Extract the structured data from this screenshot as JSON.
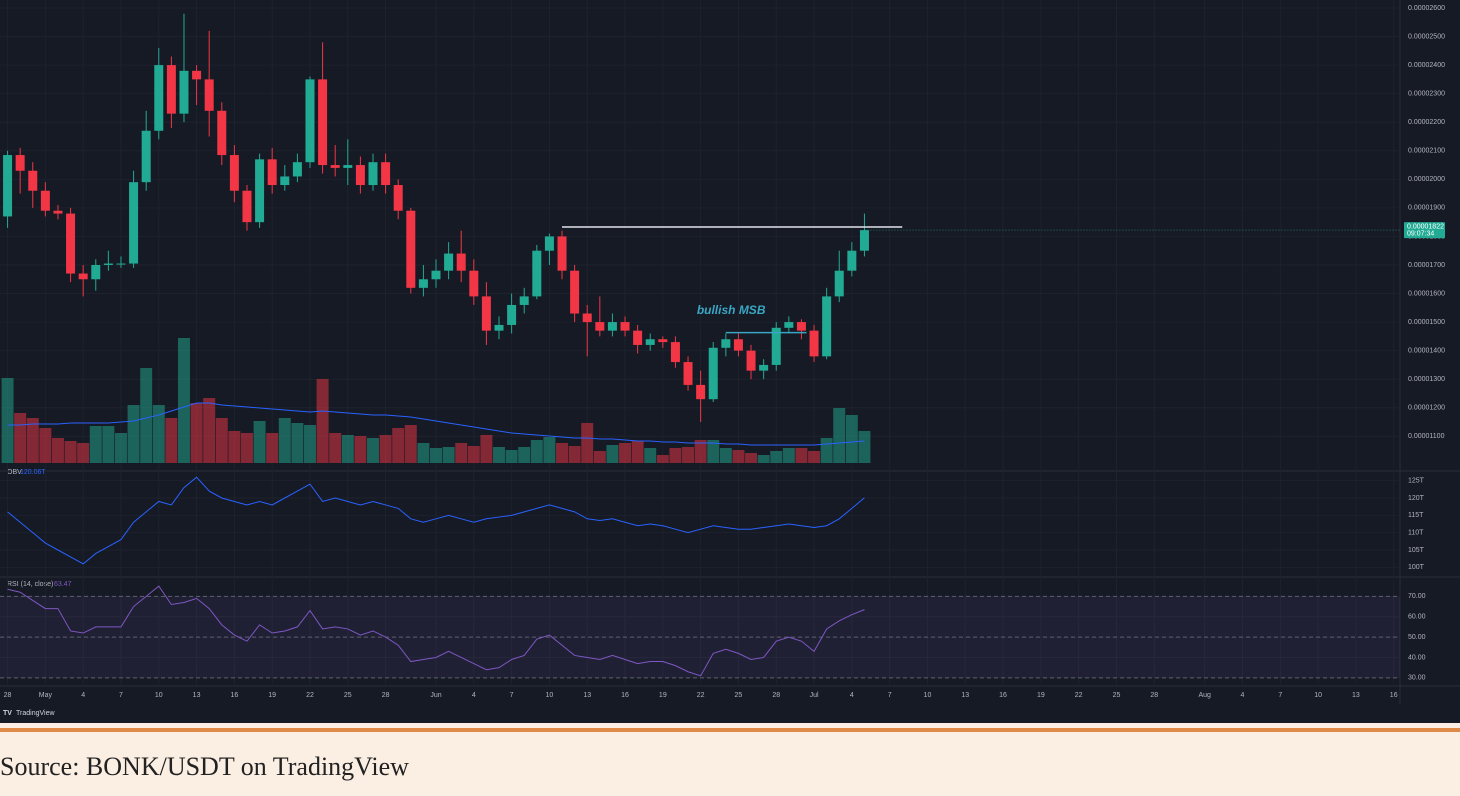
{
  "chart_data": {
    "type": "candlestick",
    "candles": {
      "open": [
        1.87e-05,
        2.085e-05,
        2.03e-05,
        1.96e-05,
        1.89e-05,
        1.88e-05,
        1.67e-05,
        1.65e-05,
        1.7e-05,
        1.705e-05,
        1.705e-05,
        1.99e-05,
        2.17e-05,
        2.4e-05,
        2.23e-05,
        2.38e-05,
        2.35e-05,
        2.24e-05,
        2.085e-05,
        1.96e-05,
        1.85e-05,
        2.07e-05,
        1.98e-05,
        2.01e-05,
        2.06e-05,
        2.35e-05,
        2.05e-05,
        2.04e-05,
        2.05e-05,
        1.98e-05,
        2.06e-05,
        1.98e-05,
        1.89e-05,
        1.62e-05,
        1.65e-05,
        1.68e-05,
        1.74e-05,
        1.68e-05,
        1.59e-05,
        1.47e-05,
        1.49e-05,
        1.56e-05,
        1.59e-05,
        1.75e-05,
        1.8e-05,
        1.68e-05,
        1.53e-05,
        1.5e-05,
        1.47e-05,
        1.5e-05,
        1.47e-05,
        1.42e-05,
        1.44e-05,
        1.43e-05,
        1.36e-05,
        1.28e-05,
        1.23e-05,
        1.41e-05,
        1.44e-05,
        1.4e-05,
        1.33e-05,
        1.35e-05,
        1.48e-05,
        1.5e-05,
        1.47e-05,
        1.38e-05,
        1.59e-05,
        1.68e-05,
        1.75e-05
      ],
      "high": [
        2.1e-05,
        2.11e-05,
        2.06e-05,
        1.99e-05,
        1.91e-05,
        1.9e-05,
        1.7e-05,
        1.72e-05,
        1.75e-05,
        1.73e-05,
        2.03e-05,
        2.24e-05,
        2.46e-05,
        2.43e-05,
        2.58e-05,
        2.4e-05,
        2.52e-05,
        2.27e-05,
        2.12e-05,
        1.98e-05,
        2.09e-05,
        2.11e-05,
        2.05e-05,
        2.09e-05,
        2.36e-05,
        2.48e-05,
        2.12e-05,
        2.14e-05,
        2.08e-05,
        2.09e-05,
        2.09e-05,
        2e-05,
        1.9e-05,
        1.7e-05,
        1.72e-05,
        1.78e-05,
        1.82e-05,
        1.72e-05,
        1.64e-05,
        1.52e-05,
        1.6e-05,
        1.62e-05,
        1.77e-05,
        1.81e-05,
        1.82e-05,
        1.7e-05,
        1.56e-05,
        1.59e-05,
        1.53e-05,
        1.52e-05,
        1.49e-05,
        1.46e-05,
        1.45e-05,
        1.45e-05,
        1.38e-05,
        1.33e-05,
        1.43e-05,
        1.46e-05,
        1.46e-05,
        1.42e-05,
        1.37e-05,
        1.5e-05,
        1.52e-05,
        1.51e-05,
        1.49e-05,
        1.62e-05,
        1.75e-05,
        1.78e-05,
        1.88e-05
      ],
      "low": [
        1.83e-05,
        1.95e-05,
        1.9e-05,
        1.87e-05,
        1.86e-05,
        1.64e-05,
        1.59e-05,
        1.61e-05,
        1.68e-05,
        1.69e-05,
        1.69e-05,
        1.96e-05,
        2.14e-05,
        2.18e-05,
        2.2e-05,
        2.26e-05,
        2.15e-05,
        2.05e-05,
        1.92e-05,
        1.82e-05,
        1.83e-05,
        1.95e-05,
        1.96e-05,
        1.99e-05,
        2.04e-05,
        2.02e-05,
        2.01e-05,
        1.98e-05,
        1.95e-05,
        1.96e-05,
        1.95e-05,
        1.86e-05,
        1.6e-05,
        1.59e-05,
        1.62e-05,
        1.65e-05,
        1.64e-05,
        1.56e-05,
        1.42e-05,
        1.44e-05,
        1.46e-05,
        1.53e-05,
        1.58e-05,
        1.7e-05,
        1.65e-05,
        1.5e-05,
        1.38e-05,
        1.45e-05,
        1.45e-05,
        1.45e-05,
        1.39e-05,
        1.4e-05,
        1.41e-05,
        1.34e-05,
        1.26e-05,
        1.15e-05,
        1.22e-05,
        1.38e-05,
        1.38e-05,
        1.3e-05,
        1.3e-05,
        1.33e-05,
        1.46e-05,
        1.44e-05,
        1.36e-05,
        1.37e-05,
        1.57e-05,
        1.66e-05,
        1.73e-05
      ],
      "close": [
        2.085e-05,
        2.03e-05,
        1.96e-05,
        1.89e-05,
        1.88e-05,
        1.67e-05,
        1.65e-05,
        1.7e-05,
        1.705e-05,
        1.705e-05,
        1.99e-05,
        2.17e-05,
        2.4e-05,
        2.23e-05,
        2.38e-05,
        2.35e-05,
        2.24e-05,
        2.085e-05,
        1.96e-05,
        1.85e-05,
        2.07e-05,
        1.98e-05,
        2.01e-05,
        2.06e-05,
        2.35e-05,
        2.05e-05,
        2.04e-05,
        2.05e-05,
        1.98e-05,
        2.06e-05,
        1.98e-05,
        1.89e-05,
        1.62e-05,
        1.65e-05,
        1.68e-05,
        1.74e-05,
        1.68e-05,
        1.59e-05,
        1.47e-05,
        1.49e-05,
        1.56e-05,
        1.59e-05,
        1.75e-05,
        1.8e-05,
        1.68e-05,
        1.53e-05,
        1.5e-05,
        1.47e-05,
        1.5e-05,
        1.47e-05,
        1.42e-05,
        1.44e-05,
        1.43e-05,
        1.36e-05,
        1.28e-05,
        1.23e-05,
        1.41e-05,
        1.44e-05,
        1.4e-05,
        1.33e-05,
        1.35e-05,
        1.48e-05,
        1.5e-05,
        1.47e-05,
        1.38e-05,
        1.59e-05,
        1.68e-05,
        1.75e-05,
        1.822e-05
      ],
      "volume": [
        85,
        50,
        45,
        35,
        25,
        22,
        20,
        37,
        37,
        30,
        58,
        95,
        58,
        45,
        125,
        60,
        65,
        45,
        32,
        30,
        42,
        30,
        45,
        40,
        38,
        84,
        30,
        28,
        27,
        25,
        28,
        35,
        38,
        20,
        15,
        16,
        20,
        17,
        28,
        16,
        13,
        16,
        23,
        26,
        20,
        17,
        40,
        12,
        18,
        20,
        22,
        15,
        8,
        15,
        16,
        23,
        23,
        15,
        13,
        10,
        8,
        12,
        15,
        15,
        12,
        25,
        55,
        48,
        32
      ],
      "volume_ma": [
        38,
        38,
        39,
        39,
        39,
        40,
        40,
        40,
        40,
        41,
        42,
        45,
        48,
        52,
        56,
        60,
        60,
        58,
        57,
        56,
        55,
        54,
        53,
        52,
        51,
        52,
        51,
        50,
        49,
        48,
        48,
        47,
        46,
        44,
        42,
        40,
        38,
        36,
        34,
        32,
        30,
        29,
        28,
        27,
        26,
        25,
        25,
        24,
        24,
        23,
        22,
        22,
        21,
        21,
        20,
        20,
        20,
        19,
        19,
        18,
        18,
        18,
        18,
        18,
        18,
        19,
        20,
        21,
        22
      ]
    },
    "up_color": "#22ab94",
    "down_color": "#f23645",
    "xlim": [
      -0.6,
      110.5
    ],
    "xticks": [
      {
        "value": 0,
        "label": "28"
      },
      {
        "value": 3,
        "label": "May"
      },
      {
        "value": 6,
        "label": "4"
      },
      {
        "value": 9,
        "label": "7"
      },
      {
        "value": 12,
        "label": "10"
      },
      {
        "value": 15,
        "label": "13"
      },
      {
        "value": 18,
        "label": "16"
      },
      {
        "value": 21,
        "label": "19"
      },
      {
        "value": 24,
        "label": "22"
      },
      {
        "value": 27,
        "label": "25"
      },
      {
        "value": 30,
        "label": "28"
      },
      {
        "value": 34,
        "label": "Jun"
      },
      {
        "value": 37,
        "label": "4"
      },
      {
        "value": 40,
        "label": "7"
      },
      {
        "value": 43,
        "label": "10"
      },
      {
        "value": 46,
        "label": "13"
      },
      {
        "value": 49,
        "label": "16"
      },
      {
        "value": 52,
        "label": "19"
      },
      {
        "value": 55,
        "label": "22"
      },
      {
        "value": 58,
        "label": "25"
      },
      {
        "value": 61,
        "label": "28"
      },
      {
        "value": 64,
        "label": "Jul"
      },
      {
        "value": 67,
        "label": "4"
      },
      {
        "value": 70,
        "label": "7"
      },
      {
        "value": 73,
        "label": "10"
      },
      {
        "value": 76,
        "label": "13"
      },
      {
        "value": 79,
        "label": "16"
      },
      {
        "value": 82,
        "label": "19"
      },
      {
        "value": 85,
        "label": "22"
      },
      {
        "value": 88,
        "label": "25"
      },
      {
        "value": 91,
        "label": "28"
      },
      {
        "value": 95,
        "label": "Aug"
      },
      {
        "value": 98,
        "label": "4"
      },
      {
        "value": 101,
        "label": "7"
      },
      {
        "value": 104,
        "label": "10"
      },
      {
        "value": 107,
        "label": "13"
      },
      {
        "value": 110,
        "label": "16"
      }
    ],
    "ylim": [
      9.82e-06,
      2.628e-05
    ],
    "yticks": [
      {
        "value": 2.6e-05,
        "label": "0.00002600"
      },
      {
        "value": 2.5e-05,
        "label": "0.00002500"
      },
      {
        "value": 2.4e-05,
        "label": "0.00002400"
      },
      {
        "value": 2.3e-05,
        "label": "0.00002300"
      },
      {
        "value": 2.2e-05,
        "label": "0.00002200"
      },
      {
        "value": 2.1e-05,
        "label": "0.00002100"
      },
      {
        "value": 2e-05,
        "label": "0.00002000"
      },
      {
        "value": 1.9e-05,
        "label": "0.00001900"
      },
      {
        "value": 1.8e-05,
        "label": "0.00001800"
      },
      {
        "value": 1.7e-05,
        "label": "0.00001700"
      },
      {
        "value": 1.6e-05,
        "label": "0.00001600"
      },
      {
        "value": 1.5e-05,
        "label": "0.00001500"
      },
      {
        "value": 1.4e-05,
        "label": "0.00001400"
      },
      {
        "value": 1.3e-05,
        "label": "0.00001300"
      },
      {
        "value": 1.2e-05,
        "label": "0.00001200"
      },
      {
        "value": 1.1e-05,
        "label": "0.00001100"
      }
    ],
    "last_price": {
      "label": "0.00001822",
      "countdown": "09:07:34"
    },
    "levels": [
      {
        "value": 1.833e-05,
        "from": 44,
        "to": 71
      },
      {
        "value": 1.463e-05,
        "from": 57,
        "to": 63.4,
        "color": "#3aa6c4"
      }
    ],
    "annotation": {
      "text": "bullish MSB",
      "color": "#3aa6c4"
    },
    "obv": {
      "label": "OBV",
      "values": [
        116,
        113,
        110,
        107,
        105,
        103,
        101,
        104,
        106,
        108,
        113,
        116,
        119,
        118,
        123,
        126,
        122,
        120,
        119,
        118,
        119,
        118,
        120,
        122,
        124,
        119,
        120,
        119,
        118,
        119,
        118,
        117,
        114,
        113,
        114,
        115,
        114,
        113,
        114,
        114.5,
        115,
        116,
        117,
        118,
        117,
        116,
        114,
        113.5,
        114,
        113,
        112,
        112.5,
        112,
        111,
        110,
        111,
        112,
        111.5,
        111,
        111,
        111.5,
        112,
        112.5,
        112,
        111.5,
        112,
        114,
        117,
        120.06
      ],
      "last_label": "120.06T",
      "color": "#2962ff",
      "ylim": [
        97.5,
        127.5
      ],
      "yticks": [
        {
          "value": 125,
          "label": "125T"
        },
        {
          "value": 120,
          "label": "120T"
        },
        {
          "value": 115,
          "label": "115T"
        },
        {
          "value": 110,
          "label": "110T"
        },
        {
          "value": 105,
          "label": "105T"
        },
        {
          "value": 100,
          "label": "100T"
        }
      ]
    },
    "rsi": {
      "label": "RSI (14, close)",
      "values": [
        73.5,
        72,
        68,
        64,
        64,
        53,
        52,
        55,
        55,
        55,
        65,
        70,
        75,
        66,
        67,
        69,
        64,
        56,
        51,
        48,
        56,
        52,
        53,
        55,
        63,
        54,
        55,
        54,
        51,
        53,
        50,
        46,
        38,
        39,
        40,
        43,
        40,
        37,
        34,
        35,
        39,
        41,
        49,
        51,
        46,
        41,
        40,
        39,
        41,
        39,
        37,
        38,
        38,
        36,
        33,
        31,
        42,
        44,
        42,
        39,
        40,
        48,
        50,
        48,
        43,
        54,
        58,
        61,
        63.47
      ],
      "last_label": "63.47",
      "color": "#7e57c2",
      "ylim": [
        26,
        79
      ],
      "yticks": [
        {
          "value": 70,
          "label": "70.00"
        },
        {
          "value": 60,
          "label": "60.00"
        },
        {
          "value": 50,
          "label": "50.00"
        },
        {
          "value": 40,
          "label": "40.00"
        },
        {
          "value": 30,
          "label": "30.00"
        }
      ],
      "bands": [
        70,
        50,
        30
      ]
    },
    "brand": "TradingView",
    "caption": "Source: BONK/USDT on TradingView"
  }
}
